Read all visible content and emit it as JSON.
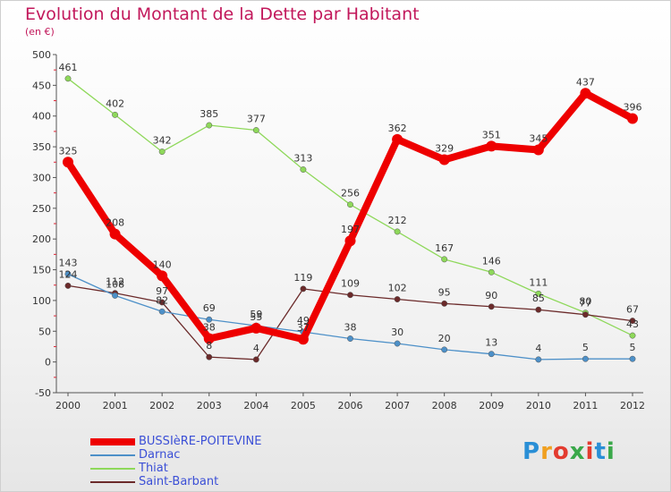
{
  "header": {
    "title": "Evolution du Montant de la Dette par Habitant",
    "subtitle": "(en €)"
  },
  "logo": {
    "text": "Proxiti"
  },
  "chart_data": {
    "type": "line",
    "title": "Evolution du Montant de la Dette par Habitant",
    "subtitle": "(en €)",
    "xlabel": "",
    "ylabel": "",
    "ylim": [
      -50,
      500
    ],
    "yticks": [
      "-50",
      "0",
      "50",
      "100",
      "150",
      "200",
      "250",
      "300",
      "350",
      "400",
      "450",
      "500"
    ],
    "categories": [
      "2000",
      "2001",
      "2002",
      "2003",
      "2004",
      "2005",
      "2006",
      "2007",
      "2008",
      "2009",
      "2010",
      "2011",
      "2012"
    ],
    "grid": false,
    "legend_position": "bottom-left",
    "series": [
      {
        "name": "BUSSIèRE-POITEVINE",
        "color": "#ee0000",
        "values": [
          325,
          208,
          140,
          38,
          55,
          37,
          197,
          362,
          329,
          351,
          345,
          437,
          396
        ],
        "labels": [
          "325",
          "208",
          "140",
          "38",
          "55",
          "37",
          "197",
          "362",
          "329",
          "351",
          "345",
          "437",
          "396"
        ]
      },
      {
        "name": "Darnac",
        "color": "#4d90c8",
        "values": [
          143,
          108,
          82,
          69,
          59,
          49,
          38,
          30,
          20,
          13,
          4,
          5,
          5
        ],
        "labels": [
          "143",
          "108",
          "82",
          "69",
          "59",
          "49",
          "38",
          "30",
          "20",
          "13",
          "4",
          "5",
          "5"
        ]
      },
      {
        "name": "Thiat",
        "color": "#8ed85a",
        "values": [
          461,
          402,
          342,
          385,
          377,
          313,
          256,
          212,
          167,
          146,
          111,
          80,
          43
        ],
        "labels": [
          "461",
          "402",
          "342",
          "385",
          "377",
          "313",
          "256",
          "212",
          "167",
          "146",
          "111",
          "80",
          "43"
        ]
      },
      {
        "name": "Saint-Barbant",
        "color": "#6b2a2a",
        "values": [
          124,
          112,
          97,
          8,
          4,
          119,
          109,
          102,
          95,
          90,
          85,
          77,
          67
        ],
        "labels": [
          "124",
          "112",
          "97",
          "8",
          "4",
          "119",
          "109",
          "102",
          "95",
          "90",
          "85",
          "77",
          "67"
        ]
      }
    ]
  }
}
